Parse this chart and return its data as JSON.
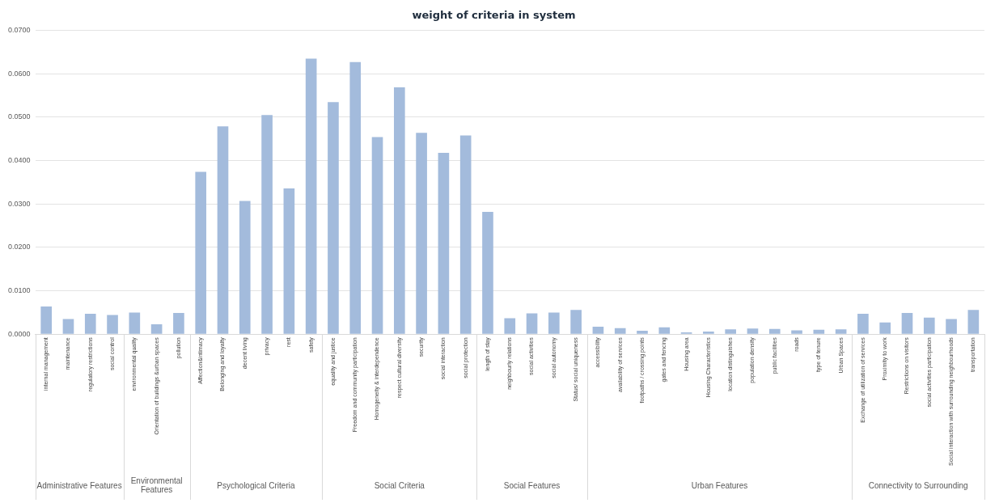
{
  "chart_data": {
    "type": "bar",
    "title": "weight of criteria in system",
    "categories": [
      "internal management",
      "maintenance",
      "regulatory restrictions",
      "social control",
      "environmental quality",
      "Orientation of buildings &urban spaces",
      "pollution",
      "Affection&intimacy",
      "Belonging and loyalty",
      "decent living",
      "privacy",
      "rest",
      "safety",
      "equality and justice",
      "Freedom and community participation",
      "Homogeneity & interdependence",
      "respect cultural diversity",
      "security",
      "social interaction",
      "social protection",
      "length of stay",
      "neighbourly relations",
      "social activities",
      "social autonomy",
      "Status/ social uniqueness",
      "accessibility",
      "availability of services",
      "footpaths / crossing points",
      "gates and fencing",
      "Housing area",
      "Housing Characteristics",
      "location distinguishes",
      "population density",
      "public facilities",
      "roads",
      "type of tenure",
      "Urban Spaces",
      "Exchange of utilization of services",
      "Proximity to work",
      "Restrictions on visitors",
      "social activities participation",
      "Social interaction with surrounding neighbourhoods",
      "transportation"
    ],
    "values": [
      0.0064,
      0.0035,
      0.0047,
      0.0044,
      0.005,
      0.0023,
      0.0049,
      0.0374,
      0.0479,
      0.0307,
      0.0505,
      0.0336,
      0.0635,
      0.0535,
      0.0627,
      0.0454,
      0.0569,
      0.0464,
      0.0418,
      0.0458,
      0.0282,
      0.0037,
      0.0048,
      0.005,
      0.0056,
      0.0017,
      0.0014,
      0.0008,
      0.0016,
      0.0004,
      0.0006,
      0.0011,
      0.0013,
      0.0012,
      0.0009,
      0.001,
      0.0011,
      0.0047,
      0.0027,
      0.0049,
      0.0038,
      0.0035,
      0.0056
    ],
    "color": "#a3bbdc",
    "ylim": [
      0,
      0.07
    ],
    "yticks": [
      {
        "value": 0,
        "label": "0.0000"
      },
      {
        "value": 0.01,
        "label": "0.0100"
      },
      {
        "value": 0.02,
        "label": "0.0200"
      },
      {
        "value": 0.03,
        "label": "0.0300"
      },
      {
        "value": 0.04,
        "label": "0.0400"
      },
      {
        "value": 0.05,
        "label": "0.0500"
      },
      {
        "value": 0.06,
        "label": "0.0600"
      },
      {
        "value": 0.07,
        "label": "0.0700"
      }
    ],
    "grid": "y",
    "annotations": [
      "Administrative Features",
      "Environmental Features",
      "Psychological Criteria",
      "Social Criteria",
      "Social Features",
      "Urban Features",
      "Connectivity to Surrounding"
    ]
  }
}
